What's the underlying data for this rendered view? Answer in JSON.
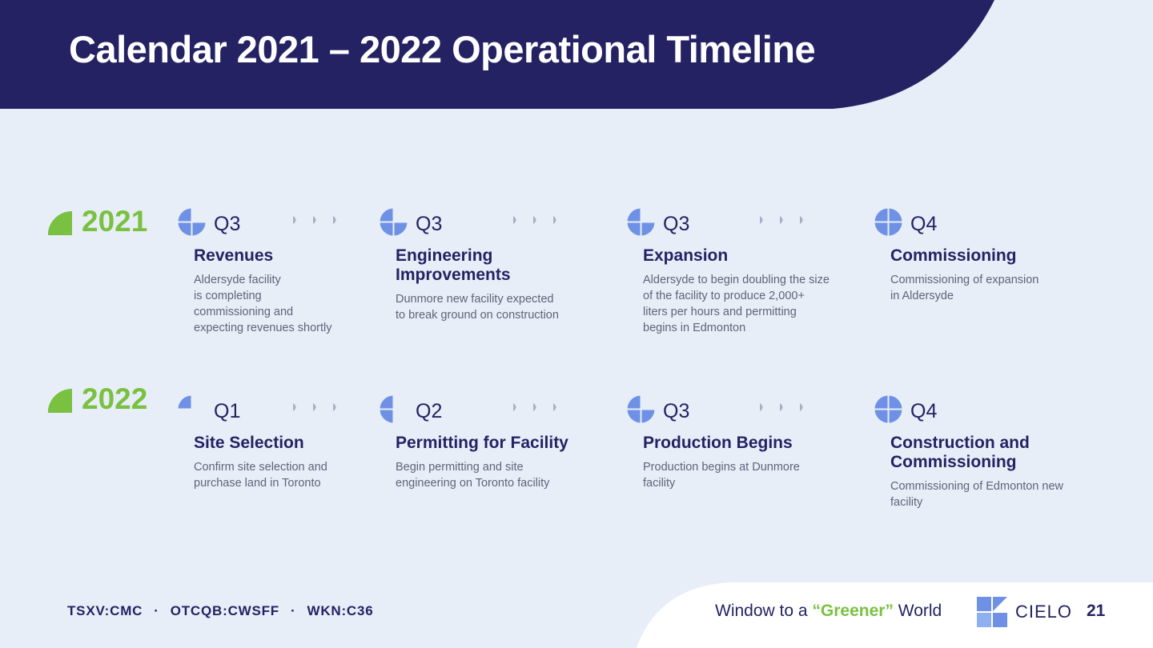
{
  "header": {
    "title": "Calendar 2021 – 2022 Operational Timeline"
  },
  "colors": {
    "navy": "#242263",
    "green": "#7ac142",
    "icon_blue": "#6e91e6",
    "background": "#e8eef8"
  },
  "years": [
    {
      "year": "2021",
      "milestones": [
        {
          "quarter": "Q3",
          "quarter_icon": "pie-three-quarters-icon",
          "filled_quarters": 3,
          "title": "Revenues",
          "description": "Aldersyde facility\nis completing\ncommissioning and\nexpecting revenues shortly"
        },
        {
          "quarter": "Q3",
          "quarter_icon": "pie-three-quarters-icon",
          "filled_quarters": 3,
          "title": "Engineering\nImprovements",
          "description": "Dunmore new facility expected\nto break ground on construction"
        },
        {
          "quarter": "Q3",
          "quarter_icon": "pie-three-quarters-icon",
          "filled_quarters": 3,
          "title": "Expansion",
          "description": "Aldersyde to begin doubling the size\nof the facility to produce 2,000+\nliters per hours and permitting\nbegins in Edmonton"
        },
        {
          "quarter": "Q4",
          "quarter_icon": "pie-full-icon",
          "filled_quarters": 4,
          "title": "Commissioning",
          "description": "Commissioning of expansion\nin Aldersyde"
        }
      ]
    },
    {
      "year": "2022",
      "milestones": [
        {
          "quarter": "Q1",
          "quarter_icon": "pie-one-quarter-icon",
          "filled_quarters": 1,
          "title": "Site Selection",
          "description": "Confirm site selection and\npurchase land in Toronto"
        },
        {
          "quarter": "Q2",
          "quarter_icon": "pie-half-icon",
          "filled_quarters": 2,
          "title": "Permitting for Facility",
          "description": "Begin permitting and site\nengineering on Toronto facility"
        },
        {
          "quarter": "Q3",
          "quarter_icon": "pie-three-quarters-icon",
          "filled_quarters": 3,
          "title": "Production Begins",
          "description": "Production begins at Dunmore\nfacility"
        },
        {
          "quarter": "Q4",
          "quarter_icon": "pie-full-icon",
          "filled_quarters": 4,
          "title": "Construction and\nCommissioning",
          "description": "Commissioning of Edmonton new\nfacility"
        }
      ]
    }
  ],
  "footer": {
    "tickers": [
      "TSXV:CMC",
      "OTCQB:CWSFF",
      "WKN:C36"
    ],
    "ticker_separator": "·",
    "tagline_before": "Window to a ",
    "tagline_highlight": "“Greener”",
    "tagline_after": " World",
    "logo_text": "CIELO",
    "page_number": "21"
  }
}
